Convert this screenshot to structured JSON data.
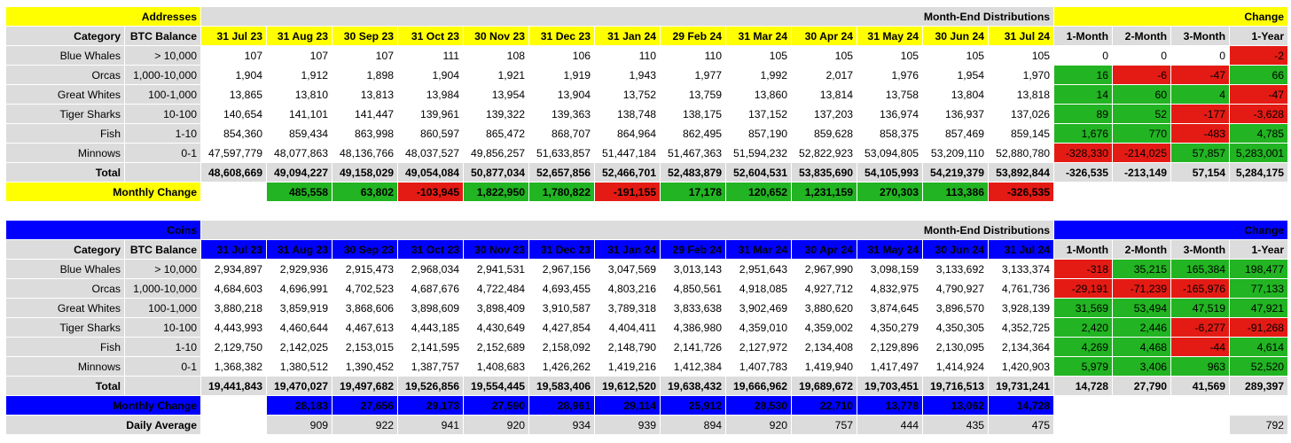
{
  "shared": {
    "distributions_header": "Month-End Distributions",
    "change_header": "Change",
    "category_header": "Category",
    "balance_header": "BTC Balance",
    "months": [
      "31 Jul 23",
      "31 Aug 23",
      "30 Sep 23",
      "31 Oct 23",
      "30 Nov 23",
      "31 Dec 23",
      "31 Jan 24",
      "29 Feb 24",
      "31 Mar 24",
      "30 Apr 24",
      "31 May 24",
      "30 Jun 24",
      "31 Jul 24"
    ],
    "change_periods": [
      "1-Month",
      "2-Month",
      "3-Month",
      "1-Year"
    ],
    "monthly_change_label": "Monthly Change",
    "daily_average_label": "Daily Average",
    "total_label": "Total"
  },
  "colors": {
    "yellow": "#ffff00",
    "blue": "#0000ff",
    "green": "#22b422",
    "red": "#e41b14",
    "grey": "#dcdcdc"
  },
  "addresses": {
    "title": "Addresses",
    "rows": [
      {
        "category": "Blue Whales",
        "balance": "> 10,000",
        "values": [
          "107",
          "107",
          "107",
          "111",
          "108",
          "106",
          "110",
          "110",
          "105",
          "105",
          "105",
          "105",
          "105"
        ],
        "change": [
          "0",
          "0",
          "0",
          "-2"
        ]
      },
      {
        "category": "Orcas",
        "balance": "1,000-10,000",
        "values": [
          "1,904",
          "1,912",
          "1,898",
          "1,904",
          "1,921",
          "1,919",
          "1,943",
          "1,977",
          "1,992",
          "2,017",
          "1,976",
          "1,954",
          "1,970"
        ],
        "change": [
          "16",
          "-6",
          "-47",
          "66"
        ]
      },
      {
        "category": "Great Whites",
        "balance": "100-1,000",
        "values": [
          "13,865",
          "13,810",
          "13,813",
          "13,984",
          "13,954",
          "13,904",
          "13,752",
          "13,759",
          "13,860",
          "13,814",
          "13,758",
          "13,804",
          "13,818"
        ],
        "change": [
          "14",
          "60",
          "4",
          "-47"
        ]
      },
      {
        "category": "Tiger Sharks",
        "balance": "10-100",
        "values": [
          "140,654",
          "141,101",
          "141,447",
          "139,961",
          "139,322",
          "139,363",
          "138,748",
          "138,175",
          "137,152",
          "137,203",
          "136,974",
          "136,937",
          "137,026"
        ],
        "change": [
          "89",
          "52",
          "-177",
          "-3,628"
        ]
      },
      {
        "category": "Fish",
        "balance": "1-10",
        "values": [
          "854,360",
          "859,434",
          "863,998",
          "860,597",
          "865,472",
          "868,707",
          "864,964",
          "862,495",
          "857,190",
          "859,628",
          "858,375",
          "857,469",
          "859,145"
        ],
        "change": [
          "1,676",
          "770",
          "-483",
          "4,785"
        ]
      },
      {
        "category": "Minnows",
        "balance": "0-1",
        "values": [
          "47,597,779",
          "48,077,863",
          "48,136,766",
          "48,037,527",
          "49,856,257",
          "51,633,857",
          "51,447,184",
          "51,467,363",
          "51,594,232",
          "52,822,923",
          "53,094,805",
          "53,209,110",
          "52,880,780"
        ],
        "change": [
          "-328,330",
          "-214,025",
          "57,857",
          "5,283,001"
        ]
      }
    ],
    "total": {
      "values": [
        "48,608,669",
        "49,094,227",
        "49,158,029",
        "49,054,084",
        "50,877,034",
        "52,657,856",
        "52,466,701",
        "52,483,879",
        "52,604,531",
        "53,835,690",
        "54,105,993",
        "54,219,379",
        "53,892,844"
      ],
      "change": [
        "-326,535",
        "-213,149",
        "57,154",
        "5,284,175"
      ]
    },
    "monthly_change": [
      "485,558",
      "63,802",
      "-103,945",
      "1,822,950",
      "1,780,822",
      "-191,155",
      "17,178",
      "120,652",
      "1,231,159",
      "270,303",
      "113,386",
      "-326,535"
    ]
  },
  "coins": {
    "title": "Coins",
    "rows": [
      {
        "category": "Blue Whales",
        "balance": "> 10,000",
        "values": [
          "2,934,897",
          "2,929,936",
          "2,915,473",
          "2,968,034",
          "2,941,531",
          "2,967,156",
          "3,047,569",
          "3,013,143",
          "2,951,643",
          "2,967,990",
          "3,098,159",
          "3,133,692",
          "3,133,374"
        ],
        "change": [
          "-318",
          "35,215",
          "165,384",
          "198,477"
        ]
      },
      {
        "category": "Orcas",
        "balance": "1,000-10,000",
        "values": [
          "4,684,603",
          "4,696,991",
          "4,702,523",
          "4,687,676",
          "4,722,484",
          "4,693,455",
          "4,803,216",
          "4,850,561",
          "4,918,085",
          "4,927,712",
          "4,832,975",
          "4,790,927",
          "4,761,736"
        ],
        "change": [
          "-29,191",
          "-71,239",
          "-165,976",
          "77,133"
        ]
      },
      {
        "category": "Great Whites",
        "balance": "100-1,000",
        "values": [
          "3,880,218",
          "3,859,919",
          "3,868,606",
          "3,898,609",
          "3,898,409",
          "3,910,587",
          "3,789,318",
          "3,833,638",
          "3,902,469",
          "3,880,620",
          "3,874,645",
          "3,896,570",
          "3,928,139"
        ],
        "change": [
          "31,569",
          "53,494",
          "47,519",
          "47,921"
        ]
      },
      {
        "category": "Tiger Sharks",
        "balance": "10-100",
        "values": [
          "4,443,993",
          "4,460,644",
          "4,467,613",
          "4,443,185",
          "4,430,649",
          "4,427,854",
          "4,404,411",
          "4,386,980",
          "4,359,010",
          "4,359,002",
          "4,350,279",
          "4,350,305",
          "4,352,725"
        ],
        "change": [
          "2,420",
          "2,446",
          "-6,277",
          "-91,268"
        ]
      },
      {
        "category": "Fish",
        "balance": "1-10",
        "values": [
          "2,129,750",
          "2,142,025",
          "2,153,015",
          "2,141,595",
          "2,152,689",
          "2,158,092",
          "2,148,790",
          "2,141,726",
          "2,127,972",
          "2,134,408",
          "2,129,896",
          "2,130,095",
          "2,134,364"
        ],
        "change": [
          "4,269",
          "4,468",
          "-44",
          "4,614"
        ]
      },
      {
        "category": "Minnows",
        "balance": "0-1",
        "values": [
          "1,368,382",
          "1,380,512",
          "1,390,452",
          "1,387,757",
          "1,408,683",
          "1,426,262",
          "1,419,216",
          "1,412,384",
          "1,407,783",
          "1,419,940",
          "1,417,497",
          "1,414,924",
          "1,420,903"
        ],
        "change": [
          "5,979",
          "3,406",
          "963",
          "52,520"
        ]
      }
    ],
    "total": {
      "values": [
        "19,441,843",
        "19,470,027",
        "19,497,682",
        "19,526,856",
        "19,554,445",
        "19,583,406",
        "19,612,520",
        "19,638,432",
        "19,666,962",
        "19,689,672",
        "19,703,451",
        "19,716,513",
        "19,731,241"
      ],
      "change": [
        "14,728",
        "27,790",
        "41,569",
        "289,397"
      ]
    },
    "monthly_change": [
      "28,183",
      "27,656",
      "29,173",
      "27,590",
      "28,961",
      "29,114",
      "25,912",
      "28,530",
      "22,710",
      "13,778",
      "13,062",
      "14,728"
    ],
    "daily_average": [
      "909",
      "922",
      "941",
      "920",
      "934",
      "939",
      "894",
      "920",
      "757",
      "444",
      "435",
      "475"
    ],
    "daily_average_change": "792"
  }
}
